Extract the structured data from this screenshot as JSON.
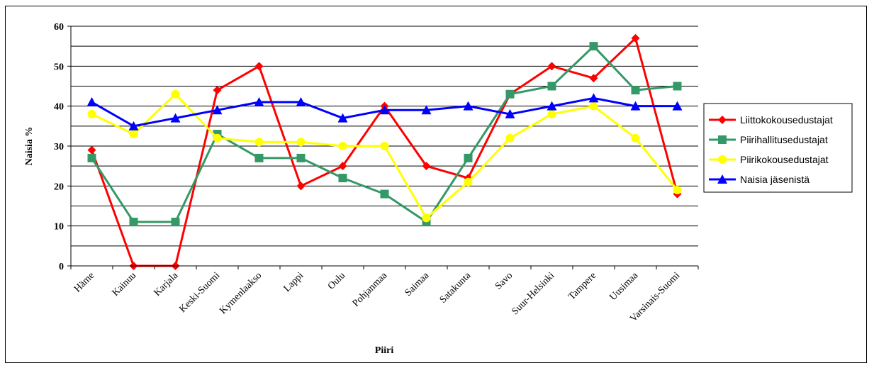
{
  "chart_data": {
    "type": "line",
    "title": "",
    "xlabel": "Piiri",
    "ylabel": "Naisia %",
    "ylim": [
      0,
      60
    ],
    "yticks": [
      0,
      10,
      20,
      30,
      40,
      50,
      60
    ],
    "grid": "horizontal lines every 5",
    "legend_position": "right",
    "categories": [
      "Häme",
      "Kainuu",
      "Karjala",
      "Keski-Suomi",
      "Kymenlaakso",
      "Lappi",
      "Oulu",
      "Pohjanmaa",
      "Saimaa",
      "Satakunta",
      "Savo",
      "Suur-Helsinki",
      "Tampere",
      "Uusimaa",
      "Varsinais-Suomi"
    ],
    "series": [
      {
        "name": "Liittokokousedustajat",
        "color": "#ff0000",
        "marker": "diamond",
        "values": [
          29,
          0,
          0,
          44,
          50,
          20,
          25,
          40,
          25,
          22,
          43,
          50,
          47,
          57,
          18
        ]
      },
      {
        "name": "Piirihallitusedustajat",
        "color": "#339966",
        "marker": "square",
        "values": [
          27,
          11,
          11,
          33,
          27,
          27,
          22,
          18,
          11,
          27,
          43,
          45,
          55,
          44,
          45
        ]
      },
      {
        "name": "Piirikokousedustajat",
        "color": "#ffff00",
        "marker": "circle",
        "values": [
          38,
          33,
          43,
          32,
          31,
          31,
          30,
          30,
          12,
          21,
          32,
          38,
          40,
          32,
          19
        ]
      },
      {
        "name": "Naisia jäsenistä",
        "color": "#0000ff",
        "marker": "triangle",
        "values": [
          41,
          35,
          37,
          39,
          41,
          41,
          37,
          39,
          39,
          40,
          38,
          40,
          42,
          40,
          40
        ]
      }
    ]
  }
}
